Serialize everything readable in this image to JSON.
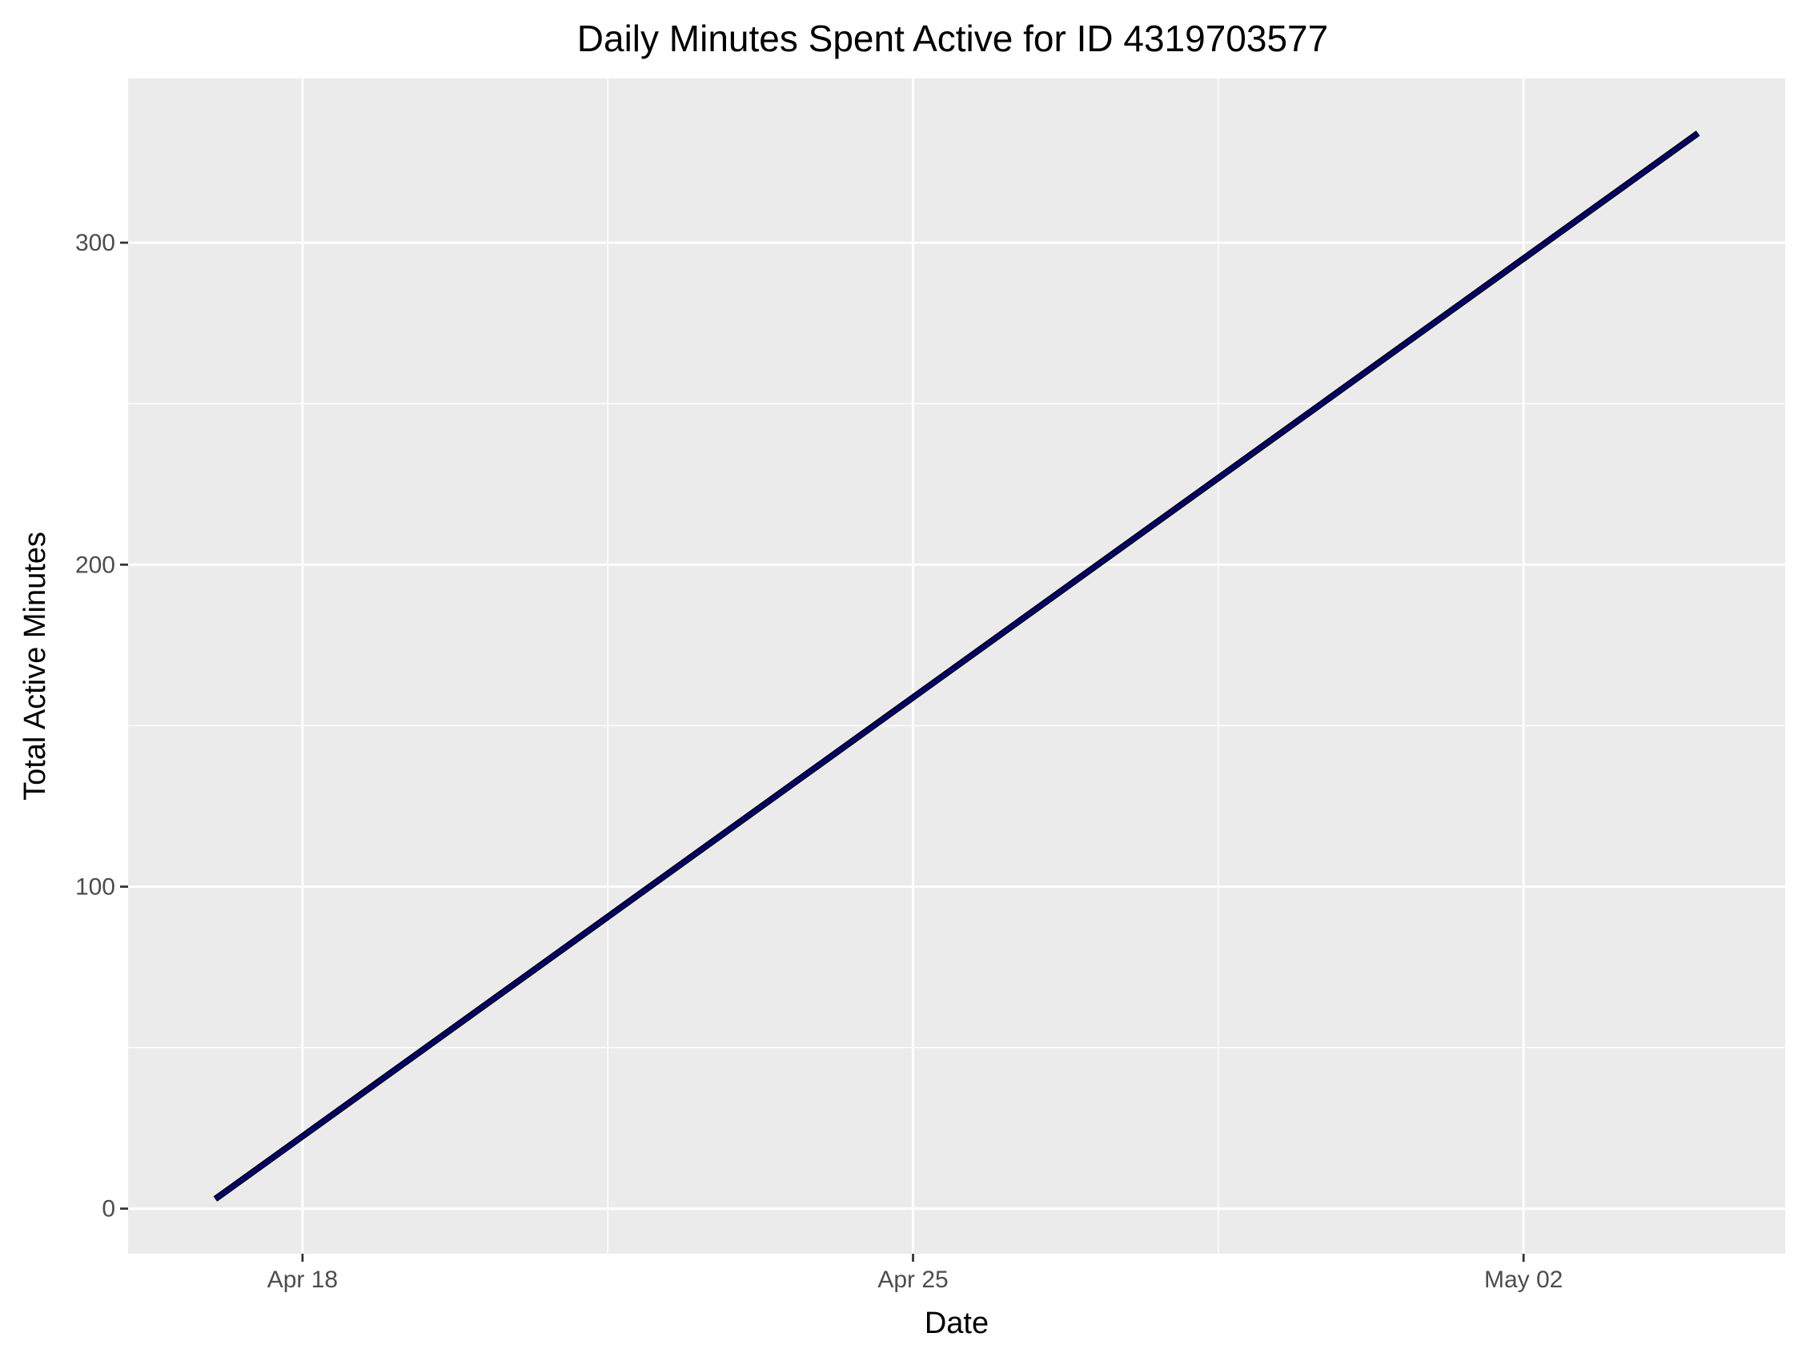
{
  "chart_data": {
    "type": "line",
    "title": "Daily Minutes Spent Active for ID 4319703577",
    "xlabel": "Date",
    "ylabel": "Total Active Minutes",
    "x_ticks": [
      {
        "date": "2016-04-18",
        "label": "Apr 18"
      },
      {
        "date": "2016-04-25",
        "label": "Apr 25"
      },
      {
        "date": "2016-05-02",
        "label": "May 02"
      }
    ],
    "y_ticks": [
      0,
      100,
      200,
      300
    ],
    "xlim": [
      "2016-04-16",
      "2016-05-05"
    ],
    "ylim": [
      -14,
      351
    ],
    "grid": true,
    "legend": "none",
    "colors": {
      "panel": "#ebebeb",
      "grid": "#ffffff",
      "line": "#000080",
      "line_outline": "#000000"
    },
    "series": [
      {
        "x": [
          "2016-04-17",
          "2016-05-04"
        ],
        "y": [
          3,
          334
        ]
      }
    ]
  }
}
